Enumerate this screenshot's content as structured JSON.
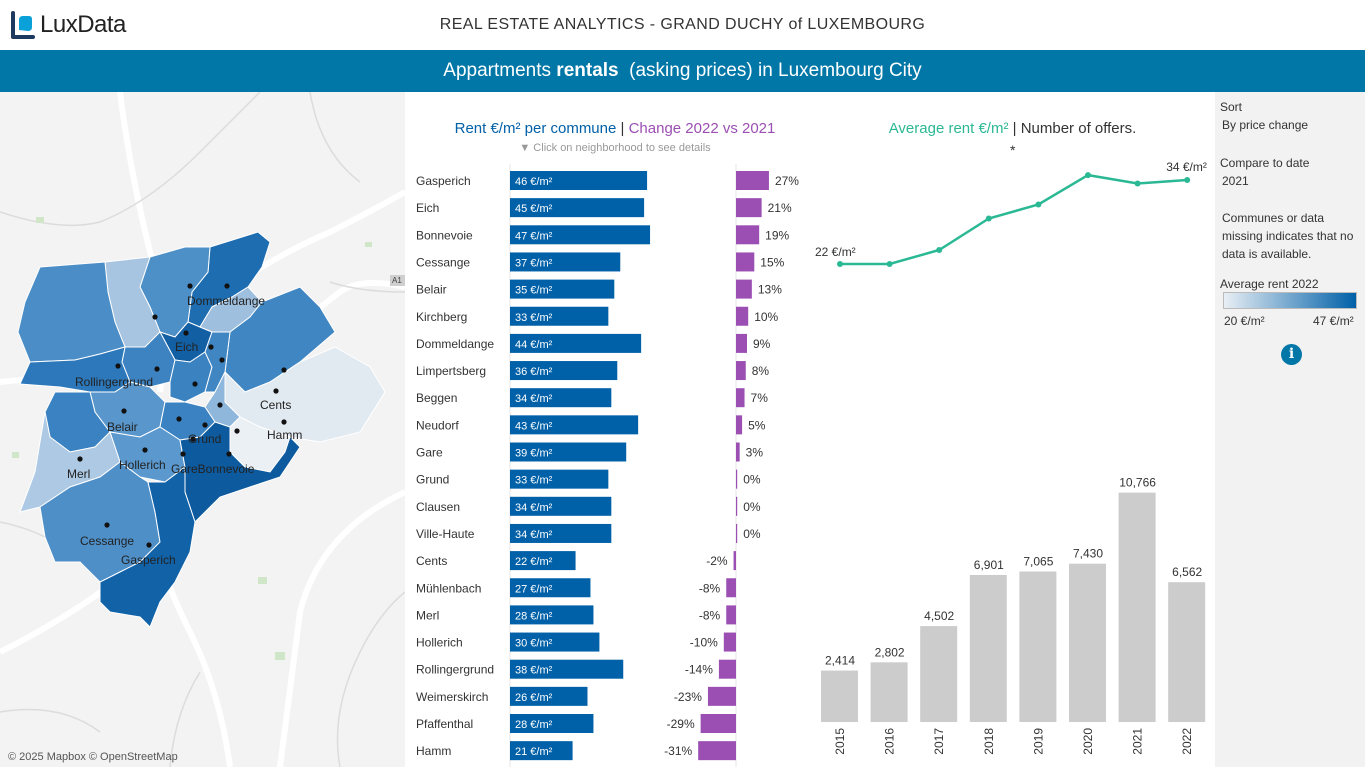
{
  "header": {
    "logo_text": "LuxData",
    "title": "REAL ESTATE ANALYTICS - GRAND DUCHY of LUXEMBOURG"
  },
  "banner": {
    "prefix": "Appartments ",
    "bold": "rentals",
    "suffix": "  (asking prices) in Luxembourg City"
  },
  "map": {
    "credit": "© 2025 Mapbox © OpenStreetMap",
    "road_label": "A1",
    "labels": [
      "Dommeldange",
      "Eich",
      "Rollingergrund",
      "Cents",
      "Belair",
      "Grund",
      "Hamm",
      "Hollerich",
      "GareBonnevoie",
      "Merl",
      "Cessange",
      "Gasperich"
    ]
  },
  "mid": {
    "title_part1": "Rent €/m²  per commune",
    "title_sep": " | ",
    "title_part2": "Change 2022 vs 2021",
    "hint": "▼  Click on neighborhood to see details"
  },
  "right": {
    "title_part1": "Average rent €/m²",
    "title_sep": " | ",
    "title_part2": "Number of offers.",
    "asterisk": "*"
  },
  "sidebar": {
    "sort_label": "Sort",
    "sort_value": "By price change",
    "compare_label": "Compare to date",
    "compare_value": "2021",
    "note": "Communes or data missing indicates that no data is available.",
    "legend_title": "Average rent 2022",
    "legend_min": "20 €/m²",
    "legend_max": "47 €/m²",
    "info_glyph": "i"
  },
  "colors": {
    "brand": "#0077a7",
    "rent_bar": "#0060a8",
    "change_bar": "#9b4fb3",
    "line": "#2bb894",
    "offers_bar": "#cccccc"
  },
  "chart_data": [
    {
      "type": "bar",
      "title": "Rent €/m² per commune",
      "categories": [
        "Gasperich",
        "Eich",
        "Bonnevoie",
        "Cessange",
        "Belair",
        "Kirchberg",
        "Dommeldange",
        "Limpertsberg",
        "Beggen",
        "Neudorf",
        "Gare",
        "Grund",
        "Clausen",
        "Ville-Haute",
        "Cents",
        "Mühlenbach",
        "Merl",
        "Hollerich",
        "Rollingergrund",
        "Weimerskirch",
        "Pfaffenthal",
        "Hamm"
      ],
      "values": [
        46,
        45,
        47,
        37,
        35,
        33,
        44,
        36,
        34,
        43,
        39,
        33,
        34,
        34,
        22,
        27,
        28,
        30,
        38,
        26,
        28,
        21
      ],
      "value_labels": [
        "46 €/m²",
        "45 €/m²",
        "47 €/m²",
        "37 €/m²",
        "35 €/m²",
        "33 €/m²",
        "44 €/m²",
        "36 €/m²",
        "34 €/m²",
        "43 €/m²",
        "39 €/m²",
        "33 €/m²",
        "34 €/m²",
        "34 €/m²",
        "22 €/m²",
        "27 €/m²",
        "28 €/m²",
        "30 €/m²",
        "38 €/m²",
        "26 €/m²",
        "28 €/m²",
        "21 €/m²"
      ],
      "xlim": [
        0,
        50
      ]
    },
    {
      "type": "bar",
      "title": "Change 2022 vs 2021",
      "categories": [
        "Gasperich",
        "Eich",
        "Bonnevoie",
        "Cessange",
        "Belair",
        "Kirchberg",
        "Dommeldange",
        "Limpertsberg",
        "Beggen",
        "Neudorf",
        "Gare",
        "Grund",
        "Clausen",
        "Ville-Haute",
        "Cents",
        "Mühlenbach",
        "Merl",
        "Hollerich",
        "Rollingergrund",
        "Weimerskirch",
        "Pfaffenthal",
        "Hamm"
      ],
      "values": [
        27,
        21,
        19,
        15,
        13,
        10,
        9,
        8,
        7,
        5,
        3,
        0,
        0,
        0,
        -2,
        -8,
        -8,
        -10,
        -14,
        -23,
        -29,
        -31
      ],
      "value_labels": [
        "27%",
        "21%",
        "19%",
        "15%",
        "13%",
        "10%",
        "9%",
        "8%",
        "7%",
        "5%",
        "3%",
        "0%",
        "0%",
        "0%",
        "-2%",
        "-8%",
        "-8%",
        "-10%",
        "-14%",
        "-23%",
        "-29%",
        "-31%"
      ],
      "unit": "%"
    },
    {
      "type": "line",
      "title": "Average rent €/m²",
      "x": [
        2015,
        2016,
        2017,
        2018,
        2019,
        2020,
        2021,
        2022
      ],
      "values": [
        22,
        22,
        24,
        28.5,
        30.5,
        34.7,
        33.5,
        34
      ],
      "labels": {
        "first": "22 €/m²",
        "last": "34 €/m²"
      },
      "ylim": [
        18,
        38
      ]
    },
    {
      "type": "bar",
      "title": "Number of offers.",
      "categories": [
        "2015",
        "2016",
        "2017",
        "2018",
        "2019",
        "2020",
        "2021",
        "2022"
      ],
      "values": [
        2414,
        2802,
        4502,
        6901,
        7065,
        7430,
        10766,
        6562
      ],
      "value_labels": [
        "2,414",
        "2,802",
        "4,502",
        "6,901",
        "7,065",
        "7,430",
        "10,766",
        "6,562"
      ],
      "ylim": [
        0,
        11500
      ]
    }
  ]
}
